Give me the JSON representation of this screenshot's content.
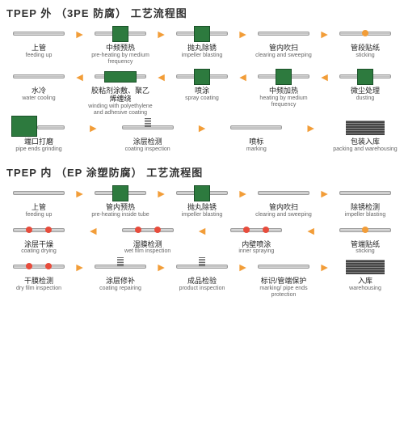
{
  "colors": {
    "green": "#2d7a3e",
    "orange": "#f29d38",
    "red": "#e74c3c",
    "pipe": "#ccc",
    "text": "#333"
  },
  "arrows": {
    "right": "►",
    "left": "◄"
  },
  "diagrams": [
    {
      "title": "TPEP 外  （3PE 防腐） 工艺流程图",
      "rows": [
        {
          "dir": "right",
          "steps": [
            {
              "zh": "上管",
              "en": "feeding up",
              "t": "pipe"
            },
            {
              "zh": "中频预热",
              "en": "pre-heating by medium frequency",
              "t": "greenbox"
            },
            {
              "zh": "抛丸除锈",
              "en": "impeller blasting",
              "t": "greenbox"
            },
            {
              "zh": "管内吹扫",
              "en": "clearing and sweeping",
              "t": "pipe"
            },
            {
              "zh": "管段贴纸",
              "en": "sticking",
              "t": "orangedot"
            }
          ]
        },
        {
          "dir": "left",
          "steps": [
            {
              "zh": "水冷",
              "en": "water cooling",
              "t": "pipe"
            },
            {
              "zh": "胶粘剂涂敷、聚乙烯缠绕",
              "en": "winding with polyethylene and adhesive coating",
              "t": "greenwide"
            },
            {
              "zh": "喷涂",
              "en": "spray coating",
              "t": "greenbox"
            },
            {
              "zh": "中频加热",
              "en": "heating by medium frequency",
              "t": "greenbox"
            },
            {
              "zh": "微尘处理",
              "en": "dusting",
              "t": "greenbox"
            }
          ]
        },
        {
          "dir": "right",
          "steps": [
            {
              "zh": "端口打磨",
              "en": "pipe ends grinding",
              "t": "greenlg"
            },
            {
              "zh": "涂层检测",
              "en": "coating inspection",
              "t": "spring"
            },
            {
              "zh": "喷标",
              "en": "marking",
              "t": "pipe"
            },
            {
              "zh": "包装入库",
              "en": "packing and warehousing",
              "t": "stack"
            }
          ]
        }
      ]
    },
    {
      "title": "TPEP 内  （EP 涂塑防腐） 工艺流程图",
      "rows": [
        {
          "dir": "right",
          "steps": [
            {
              "zh": "上管",
              "en": "feeding up",
              "t": "pipe"
            },
            {
              "zh": "管内预热",
              "en": "pre-heating inside tube",
              "t": "greenbox"
            },
            {
              "zh": "抛丸除锈",
              "en": "impeller blasting",
              "t": "greenbox"
            },
            {
              "zh": "管内吹扫",
              "en": "clearing and sweeping",
              "t": "pipe"
            },
            {
              "zh": "除锈检测",
              "en": "impeller blasting",
              "t": "pipe"
            }
          ]
        },
        {
          "dir": "left",
          "steps": [
            {
              "zh": "涂层干燥",
              "en": "coating drying",
              "t": "reddot"
            },
            {
              "zh": "湿膜检测",
              "en": "wet film inspection",
              "t": "reddot"
            },
            {
              "zh": "内壁喷涂",
              "en": "inner spraying",
              "t": "reddot"
            },
            {
              "zh": "管端贴纸",
              "en": "sticking",
              "t": "orangedot"
            }
          ]
        },
        {
          "dir": "right",
          "steps": [
            {
              "zh": "干膜检测",
              "en": "dry film inspection",
              "t": "reddot"
            },
            {
              "zh": "涂层修补",
              "en": "coating repairing",
              "t": "spring"
            },
            {
              "zh": "成品检验",
              "en": "product inspection",
              "t": "spring"
            },
            {
              "zh": "标识/管端保护",
              "en": "marking/ pipe ends protection",
              "t": "pipe"
            },
            {
              "zh": "入库",
              "en": "warehousing",
              "t": "stack"
            }
          ]
        }
      ]
    }
  ]
}
